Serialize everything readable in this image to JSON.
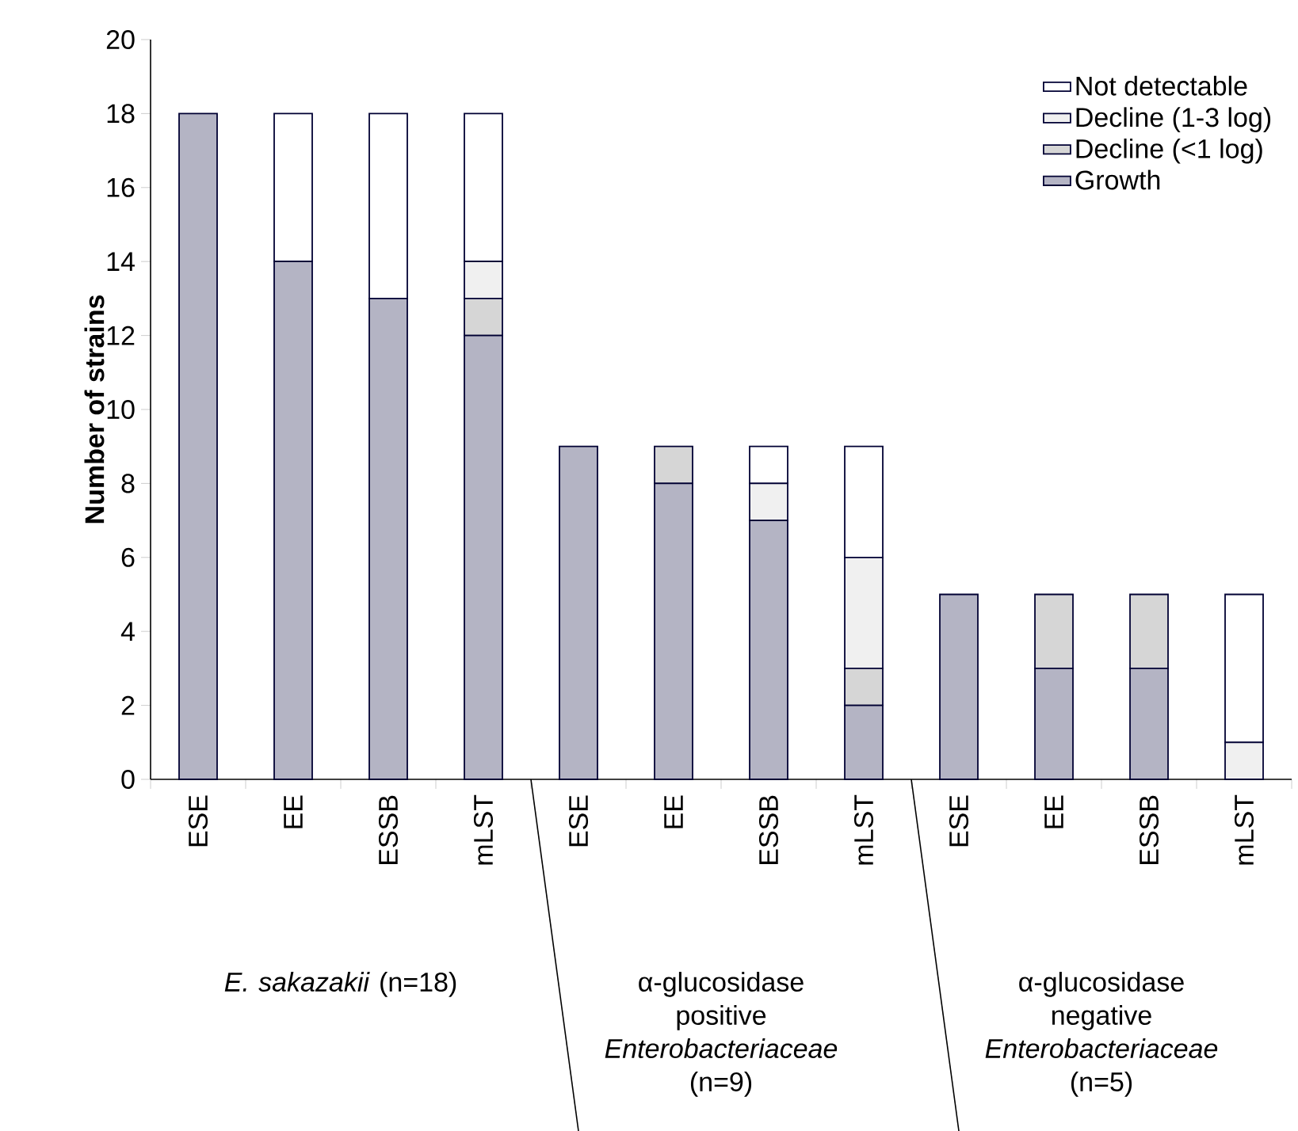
{
  "chart_data": {
    "type": "bar",
    "stacked": true,
    "ylabel": "Number of strains",
    "categories": [
      "ESE",
      "EE",
      "ESSB",
      "mLST",
      "ESE",
      "EE",
      "ESSB",
      "mLST",
      "ESE",
      "EE",
      "ESSB",
      "mLST"
    ],
    "series": [
      {
        "name": "Growth",
        "color": "#b4b4c4",
        "values": [
          18,
          14,
          13,
          12,
          9,
          8,
          7,
          2,
          5,
          3,
          3,
          0
        ]
      },
      {
        "name": "Decline (<1 log)",
        "color": "#d6d6d6",
        "values": [
          0,
          0,
          0,
          1,
          0,
          1,
          0,
          1,
          0,
          2,
          2,
          0
        ]
      },
      {
        "name": "Decline (1-3 log)",
        "color": "#f0f0f0",
        "values": [
          0,
          0,
          0,
          1,
          0,
          0,
          1,
          3,
          0,
          0,
          0,
          1
        ]
      },
      {
        "name": "Not detectable",
        "color": "#ffffff",
        "values": [
          0,
          4,
          5,
          4,
          0,
          0,
          1,
          3,
          0,
          0,
          0,
          4
        ]
      }
    ],
    "ylim": [
      0,
      20
    ],
    "yticks": [
      0,
      2,
      4,
      6,
      8,
      10,
      12,
      14,
      16,
      18,
      20
    ],
    "legend": "top right",
    "annotations": [
      "*E. sakazakii* (n=18)",
      "α-glucosidase positive *Enterobacteriaceae* (n=9)",
      "α-glucosidase negative *Enterobacteriaceae* (n=5)"
    ]
  }
}
